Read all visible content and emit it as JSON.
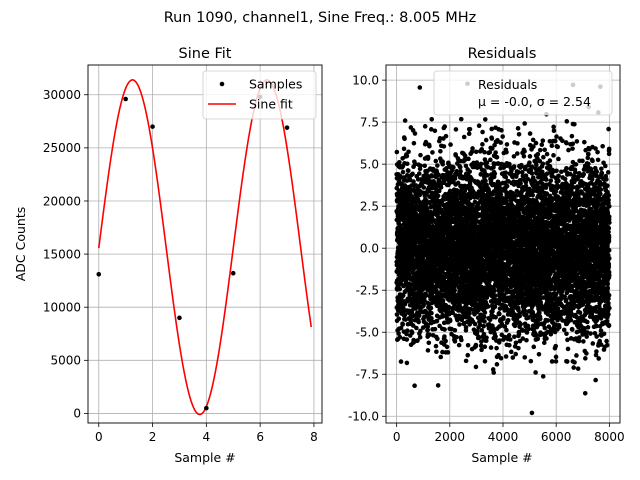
{
  "suptitle": "Run 1090, channel1, Sine Freq.: 8.005 MHz",
  "chart_data": [
    {
      "type": "line",
      "title": "Sine Fit",
      "xlabel": "Sample #",
      "ylabel": "ADC Counts",
      "xlim": [
        -0.4,
        8.3
      ],
      "ylim": [
        -900,
        32800
      ],
      "xticks": [
        0,
        2,
        4,
        6,
        8
      ],
      "yticks": [
        0,
        5000,
        10000,
        15000,
        20000,
        25000,
        30000
      ],
      "grid": true,
      "legend_position": "top-right",
      "series": [
        {
          "name": "Samples",
          "style": "points",
          "color": "#000000",
          "x": [
            0,
            1,
            2,
            3,
            4,
            5,
            6,
            7
          ],
          "y": [
            13100,
            29600,
            27000,
            9000,
            500,
            13200,
            29800,
            26900
          ]
        },
        {
          "name": "Sine fit",
          "style": "line",
          "color": "#ff0000",
          "model": {
            "offset": 15650,
            "amplitude": 15750,
            "cycles_per_sample": 0.2,
            "phase_rad": -0.0057,
            "x_start": 0,
            "x_end": 7.9
          }
        }
      ]
    },
    {
      "type": "scatter",
      "title": "Residuals",
      "xlabel": "Sample #",
      "ylabel": "",
      "xlim": [
        -400,
        8400
      ],
      "ylim": [
        -10.4,
        10.9
      ],
      "xticks": [
        0,
        2000,
        4000,
        6000,
        8000
      ],
      "yticks": [
        -10.0,
        -7.5,
        -5.0,
        -2.5,
        0.0,
        2.5,
        5.0,
        7.5,
        10.0
      ],
      "grid": true,
      "legend_position": "top-right",
      "series": [
        {
          "name": "Residuals",
          "color": "#000000",
          "n_points": 8000,
          "mean": -0.0,
          "sigma": 2.54,
          "x_range": [
            0,
            8000
          ],
          "y_range": [
            -9.8,
            9.8
          ]
        }
      ],
      "annotation_mu": "μ = -0.0, ",
      "annotation_sigma": "σ = 2.54"
    }
  ]
}
